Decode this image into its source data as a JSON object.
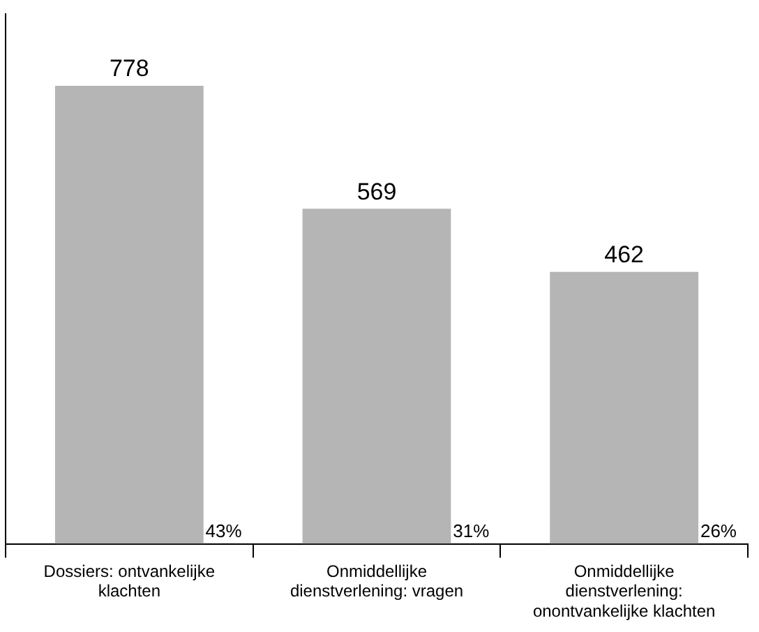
{
  "chart_data": {
    "type": "bar",
    "categories": [
      "Dossiers: ontvankelijke klachten",
      "Onmiddellijke dienstverlening: vragen",
      "Onmiddellijke dienstverlening: onontvankelijke klachten"
    ],
    "values": [
      778,
      569,
      462
    ],
    "color": "#b5b5b5",
    "data_labels": true,
    "annotations": [
      "43%",
      "31%",
      "26%"
    ],
    "grid": false,
    "legend": false
  }
}
